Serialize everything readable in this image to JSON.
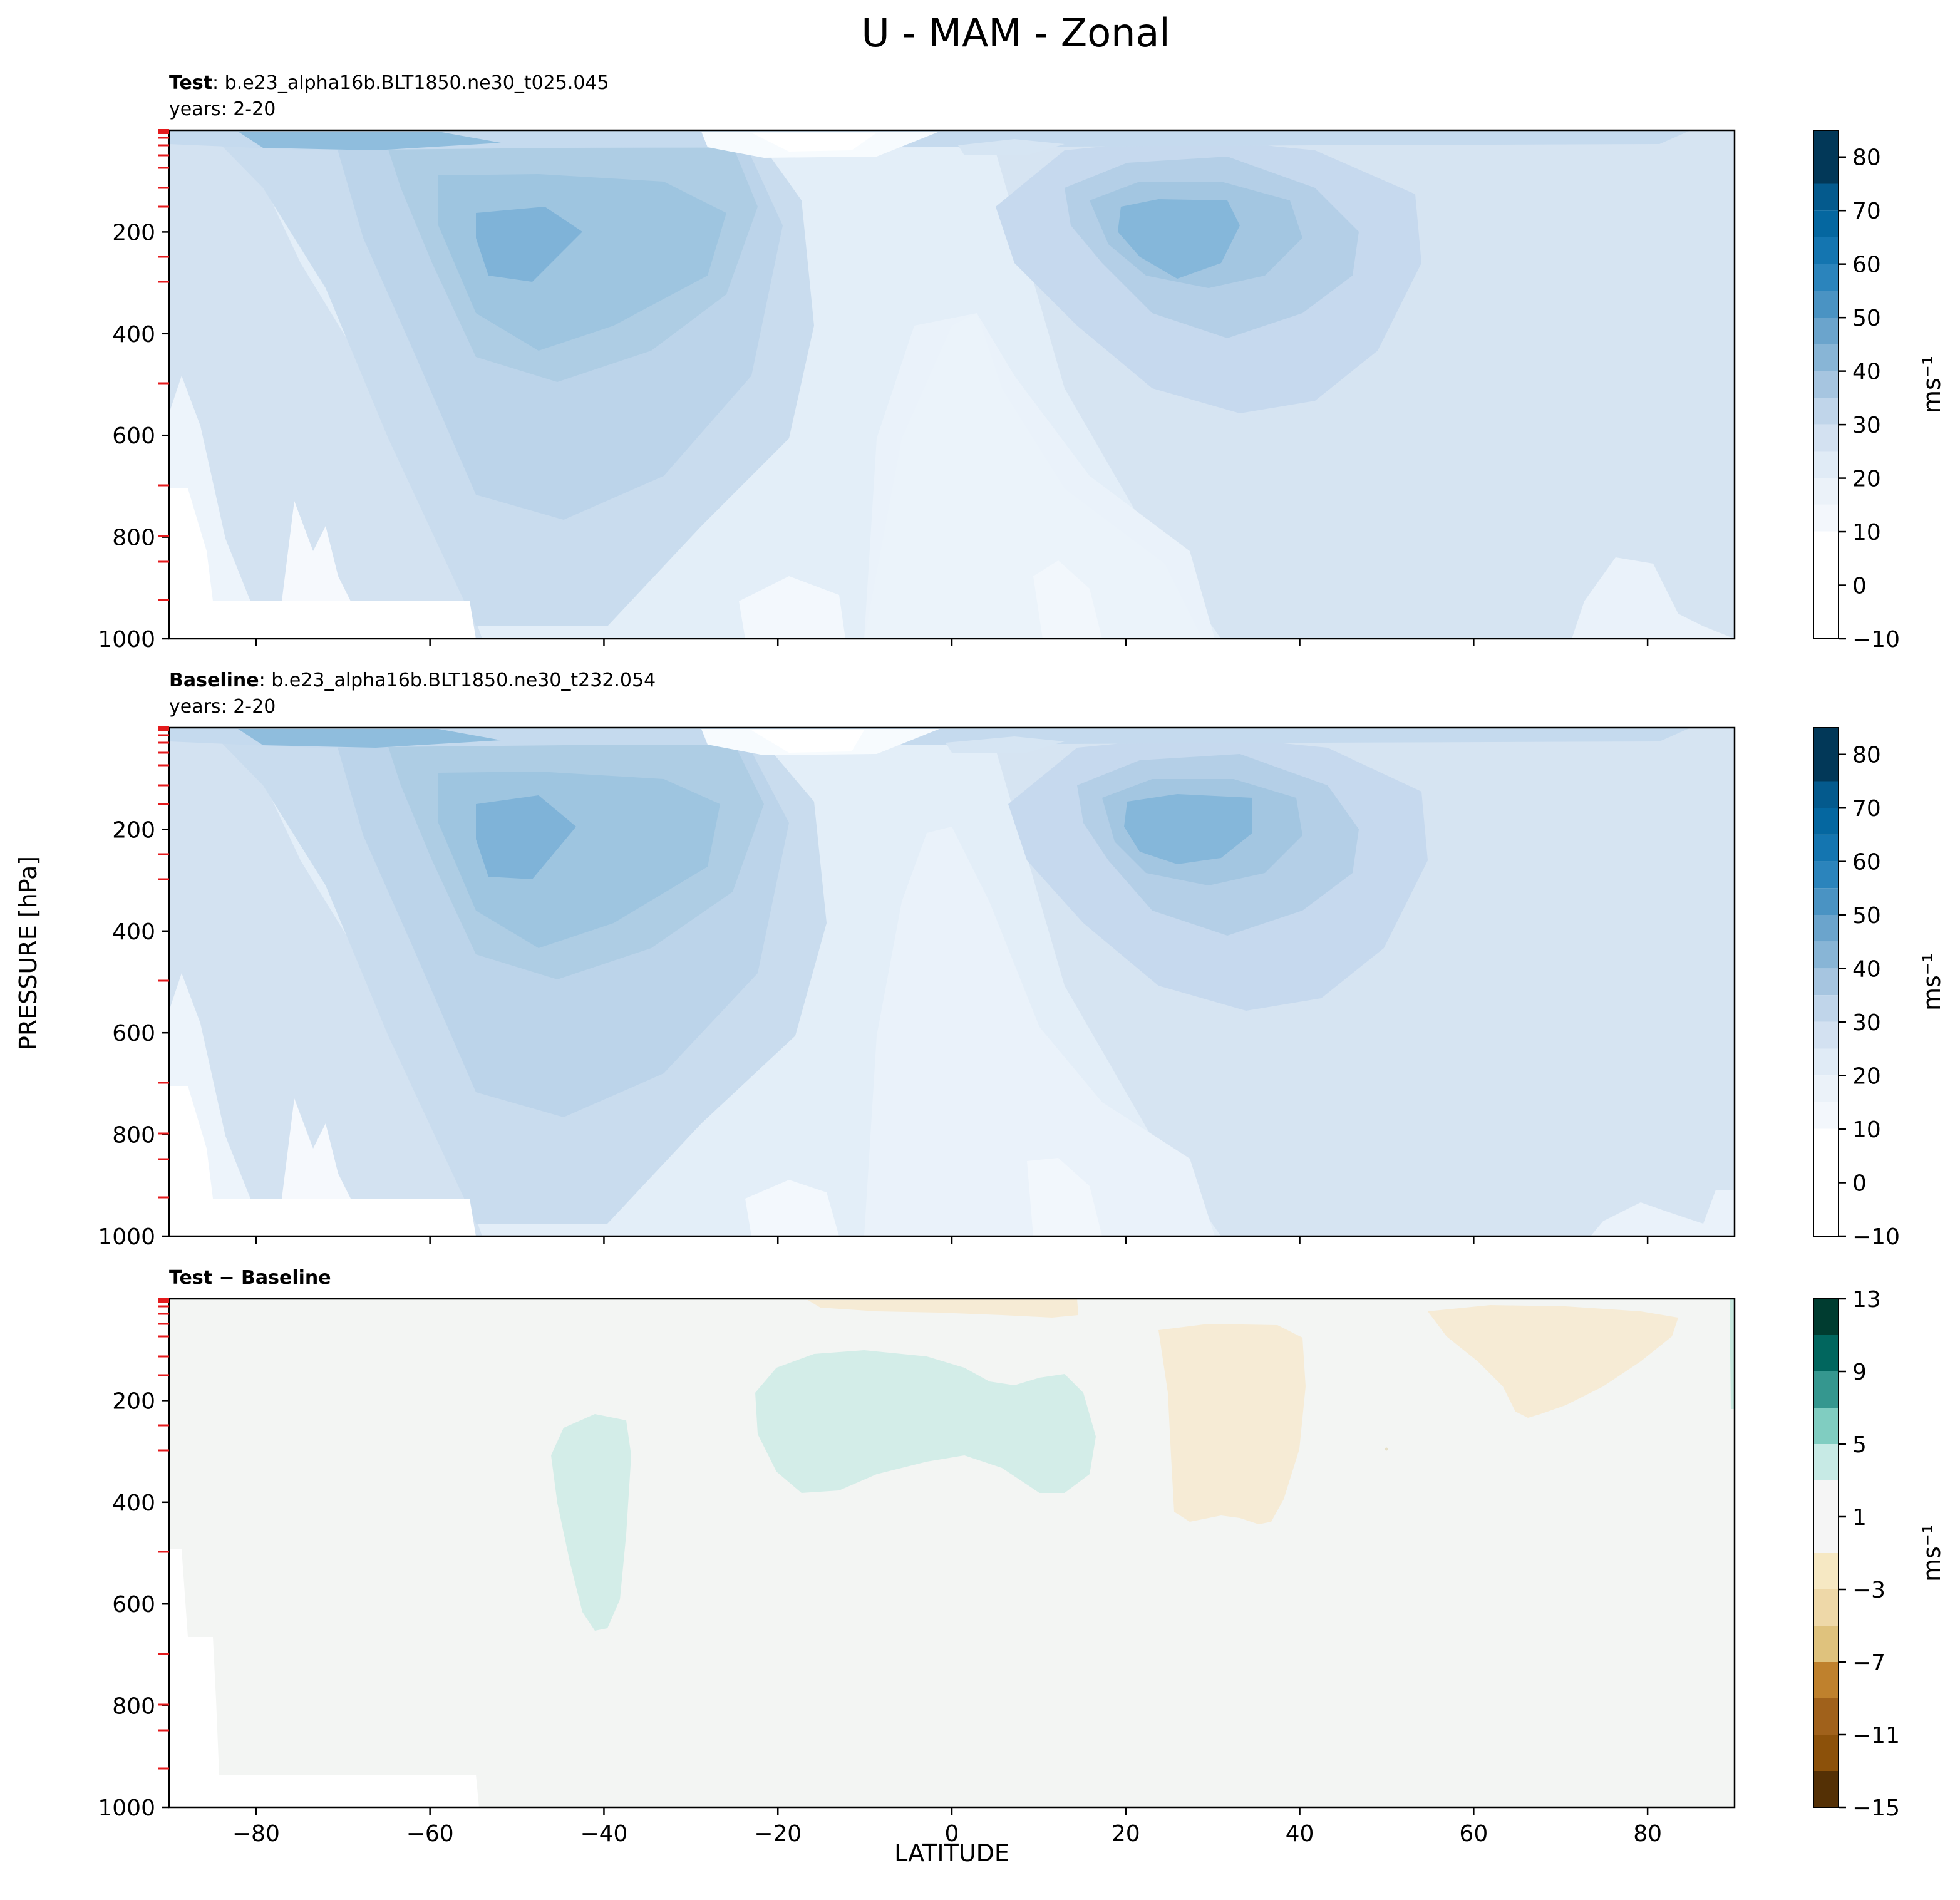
{
  "chart_data": {
    "type": "contourf",
    "title": "U - MAM - Zonal",
    "xlabel": "LATITUDE",
    "ylabel": "PRESSURE [hPa]",
    "xlim": [
      -90,
      90
    ],
    "ylim": [
      1000,
      0
    ],
    "xticks": [
      -80,
      -60,
      -40,
      -20,
      0,
      20,
      40,
      60,
      80
    ],
    "xtick_labels": [
      "−80",
      "−60",
      "−40",
      "−20",
      "0",
      "20",
      "40",
      "60",
      "80"
    ],
    "yticks": [
      200,
      400,
      600,
      800,
      1000
    ],
    "ytick_labels": [
      "200",
      "400",
      "600",
      "800",
      "1000"
    ],
    "units": "ms⁻¹",
    "panels": [
      {
        "key": "test",
        "title_bold": "Test",
        "title_rest": ": b.e23_alpha16b.BLT1850.ne30_t025.045",
        "years": "years: 2-20",
        "colorbar": {
          "colormap": "PuBu",
          "ticks": [
            -10,
            0,
            10,
            20,
            30,
            40,
            50,
            60,
            70,
            80
          ],
          "tick_labels": [
            "−10",
            "0",
            "10",
            "20",
            "30",
            "40",
            "50",
            "60",
            "70",
            "80"
          ],
          "range": [
            -10,
            85
          ]
        },
        "features": [
          {
            "desc": "southern jet core",
            "lat": -48,
            "pressure": 220,
            "max": 35
          },
          {
            "desc": "northern jet core",
            "lat": 28,
            "pressure": 200,
            "max": 35
          },
          {
            "desc": "tropical easterly minimum",
            "lat": -15,
            "pressure": 20,
            "min": -10
          }
        ]
      },
      {
        "key": "baseline",
        "title_bold": "Baseline",
        "title_rest": ": b.e23_alpha16b.BLT1850.ne30_t232.054",
        "years": "years: 2-20",
        "colorbar": {
          "colormap": "PuBu",
          "ticks": [
            -10,
            0,
            10,
            20,
            30,
            40,
            50,
            60,
            70,
            80
          ],
          "tick_labels": [
            "−10",
            "0",
            "10",
            "20",
            "30",
            "40",
            "50",
            "60",
            "70",
            "80"
          ],
          "range": [
            -10,
            85
          ]
        },
        "features": [
          {
            "desc": "southern jet core",
            "lat": -48,
            "pressure": 220,
            "max": 35
          },
          {
            "desc": "northern jet core",
            "lat": 30,
            "pressure": 200,
            "max": 35
          },
          {
            "desc": "tropical easterly minimum",
            "lat": -15,
            "pressure": 20,
            "min": -10
          }
        ]
      },
      {
        "key": "diff",
        "title_bold": "Test − Baseline",
        "title_rest": "",
        "years": "",
        "colorbar": {
          "colormap": "BrBG",
          "ticks": [
            -15,
            -11,
            -7,
            -3,
            1,
            5,
            9,
            13
          ],
          "tick_labels": [
            "−15",
            "−11",
            "−7",
            "−3",
            "1",
            "5",
            "9",
            "13"
          ],
          "range": [
            -15,
            13
          ]
        },
        "features": [
          {
            "desc": "positive anomaly",
            "lat": -40,
            "pressure": 400,
            "value": 2
          },
          {
            "desc": "positive anomaly",
            "lat": -3,
            "pressure": 250,
            "value": 2
          },
          {
            "desc": "negative anomaly",
            "lat": 30,
            "pressure": 250,
            "value": -2
          },
          {
            "desc": "negative anomaly",
            "lat": 70,
            "pressure": 100,
            "value": -2
          }
        ]
      }
    ]
  }
}
